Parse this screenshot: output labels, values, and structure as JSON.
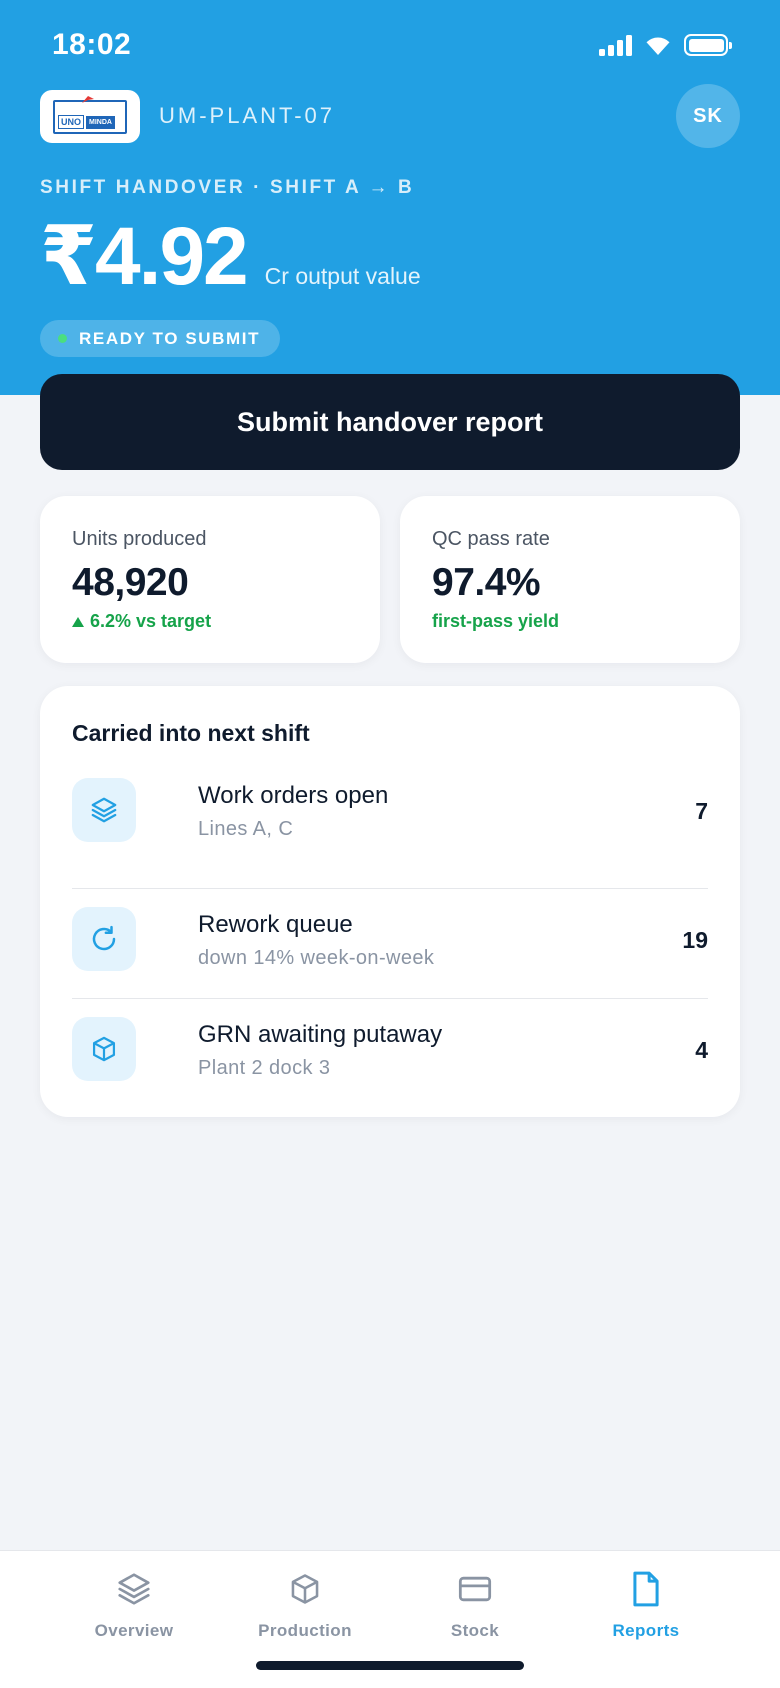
{
  "status_bar": {
    "time": "18:02"
  },
  "header": {
    "logo": {
      "brand_text_1": "UNO",
      "brand_text_2": "MINDA"
    },
    "plant_code": "UM-PLANT-07",
    "avatar_initials": "SK",
    "shift_label": "SHIFT HANDOVER · SHIFT A → B",
    "output_value": "₹4.92",
    "output_unit": "Cr output value",
    "status_pill": "READY TO SUBMIT"
  },
  "submit_button": {
    "label": "Submit handover report"
  },
  "stats": [
    {
      "label": "Units produced",
      "value": "48,920",
      "delta": "6.2% vs target"
    },
    {
      "label": "QC pass rate",
      "value": "97.4%",
      "delta": "first-pass yield"
    }
  ],
  "carry_over": {
    "title": "Carried into next shift",
    "items": [
      {
        "title": "Work orders open",
        "subtitle": "Lines A, C",
        "count": "7",
        "icon": "layers-icon"
      },
      {
        "title": "Rework queue",
        "subtitle": "down 14% week-on-week",
        "count": "19",
        "icon": "refresh-icon"
      },
      {
        "title": "GRN awaiting putaway",
        "subtitle": "Plant 2 dock 3",
        "count": "4",
        "icon": "box-icon"
      }
    ]
  },
  "tabbar": {
    "tabs": [
      {
        "label": "Overview",
        "icon": "layers-icon",
        "active": false
      },
      {
        "label": "Production",
        "icon": "box-icon",
        "active": false
      },
      {
        "label": "Stock",
        "icon": "card-icon",
        "active": false
      },
      {
        "label": "Reports",
        "icon": "document-icon",
        "active": true
      }
    ]
  },
  "colors": {
    "brand_blue": "#22A0E3",
    "dark_navy": "#0F1B2D",
    "success_green": "#16A34A",
    "page_background": "#F2F4F8",
    "icon_tile_bg": "#E3F3FD"
  }
}
